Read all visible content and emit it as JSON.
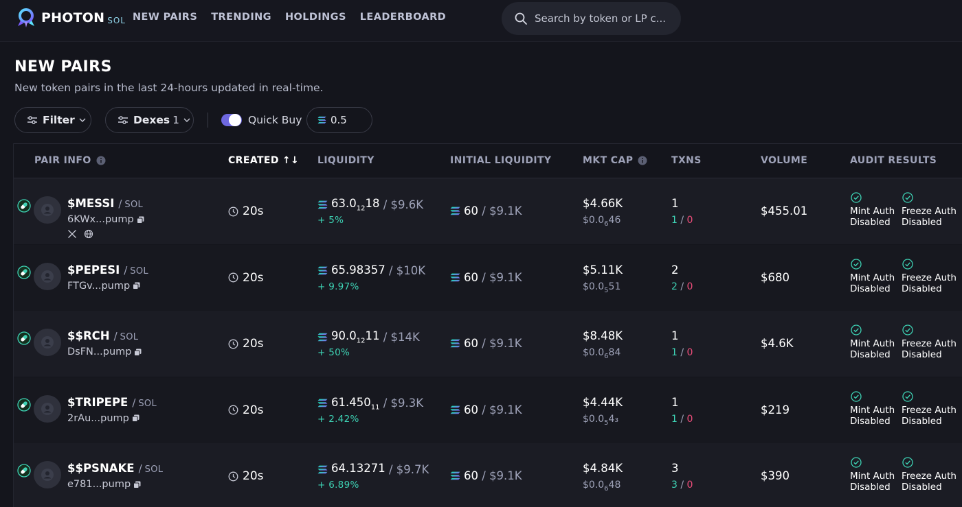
{
  "app": {
    "name": "PHOTON",
    "chain": "SOL"
  },
  "nav": [
    "NEW PAIRS",
    "TRENDING",
    "HOLDINGS",
    "LEADERBOARD"
  ],
  "search": {
    "placeholder": "Search by token or LP c..."
  },
  "page": {
    "title": "NEW PAIRS",
    "subtitle": "New token pairs in the last 24-hours updated in real-time."
  },
  "controls": {
    "filter_label": "Filter",
    "dexes_label": "Dexes",
    "dexes_count": "1",
    "quick_buy_label": "Quick Buy",
    "quick_buy_enabled": true,
    "amount": "0.5"
  },
  "columns": {
    "pair_info": "PAIR INFO",
    "created": "CREATED",
    "liquidity": "LIQUIDITY",
    "initial_liquidity": "INITIAL LIQUIDITY",
    "mkt_cap": "MKT CAP",
    "txns": "TXNS",
    "volume": "VOLUME",
    "audit_results": "AUDIT RESULTS"
  },
  "colors": {
    "accent": "#6e68e0",
    "positive": "#3ed3b5",
    "negative": "#ef4e7b",
    "background": "#14151c"
  },
  "rows": [
    {
      "name": "$MESSI",
      "quote": "SOL",
      "address": "6KWx...pump",
      "has_socials": true,
      "created": "20s",
      "liquidity": "63.0",
      "liquidity_sub": "12",
      "liquidity_tail": "18",
      "liquidity_usd": "$9.6K",
      "liquidity_change": "+ 5%",
      "init_liq": "60",
      "init_liq_usd": "$9.1K",
      "mkt_cap": "$4.66K",
      "price": "$0.0",
      "price_sub": "6",
      "price_tail": "46",
      "txns": "1",
      "buys": "1",
      "sells": "0",
      "volume": "$455.01",
      "mint_auth": "Mint Auth",
      "freeze_auth": "Freeze Auth",
      "status": "Disabled"
    },
    {
      "name": "$PEPESI",
      "quote": "SOL",
      "address": "FTGv...pump",
      "has_socials": false,
      "created": "20s",
      "liquidity": "65.98357",
      "liquidity_sub": "",
      "liquidity_tail": "",
      "liquidity_usd": "$10K",
      "liquidity_change": "+ 9.97%",
      "init_liq": "60",
      "init_liq_usd": "$9.1K",
      "mkt_cap": "$5.11K",
      "price": "$0.0",
      "price_sub": "5",
      "price_tail": "51",
      "txns": "2",
      "buys": "2",
      "sells": "0",
      "volume": "$680",
      "mint_auth": "Mint Auth",
      "freeze_auth": "Freeze Auth",
      "status": "Disabled"
    },
    {
      "name": "$$RCH",
      "quote": "SOL",
      "address": "DsFN...pump",
      "has_socials": false,
      "created": "20s",
      "liquidity": "90.0",
      "liquidity_sub": "12",
      "liquidity_tail": "11",
      "liquidity_usd": "$14K",
      "liquidity_change": "+ 50%",
      "init_liq": "60",
      "init_liq_usd": "$9.1K",
      "mkt_cap": "$8.48K",
      "price": "$0.0",
      "price_sub": "6",
      "price_tail": "84",
      "txns": "1",
      "buys": "1",
      "sells": "0",
      "volume": "$4.6K",
      "mint_auth": "Mint Auth",
      "freeze_auth": "Freeze Auth",
      "status": "Disabled"
    },
    {
      "name": "$TRIPEPE",
      "quote": "SOL",
      "address": "2rAu...pump",
      "has_socials": false,
      "created": "20s",
      "liquidity": "61.450",
      "liquidity_sub": "11",
      "liquidity_tail": "",
      "liquidity_usd": "$9.3K",
      "liquidity_change": "+ 2.42%",
      "init_liq": "60",
      "init_liq_usd": "$9.1K",
      "mkt_cap": "$4.44K",
      "price": "$0.0",
      "price_sub": "5",
      "price_tail": "4₃",
      "txns": "1",
      "buys": "1",
      "sells": "0",
      "volume": "$219",
      "mint_auth": "Mint Auth",
      "freeze_auth": "Freeze Auth",
      "status": "Disabled"
    },
    {
      "name": "$$PSNAKE",
      "quote": "SOL",
      "address": "e781...pump",
      "has_socials": false,
      "created": "20s",
      "liquidity": "64.13271",
      "liquidity_sub": "",
      "liquidity_tail": "",
      "liquidity_usd": "$9.7K",
      "liquidity_change": "+ 6.89%",
      "init_liq": "60",
      "init_liq_usd": "$9.1K",
      "mkt_cap": "$4.84K",
      "price": "$0.0",
      "price_sub": "6",
      "price_tail": "48",
      "txns": "3",
      "buys": "3",
      "sells": "0",
      "volume": "$390",
      "mint_auth": "Mint Auth",
      "freeze_auth": "Freeze Auth",
      "status": "Disabled"
    }
  ]
}
